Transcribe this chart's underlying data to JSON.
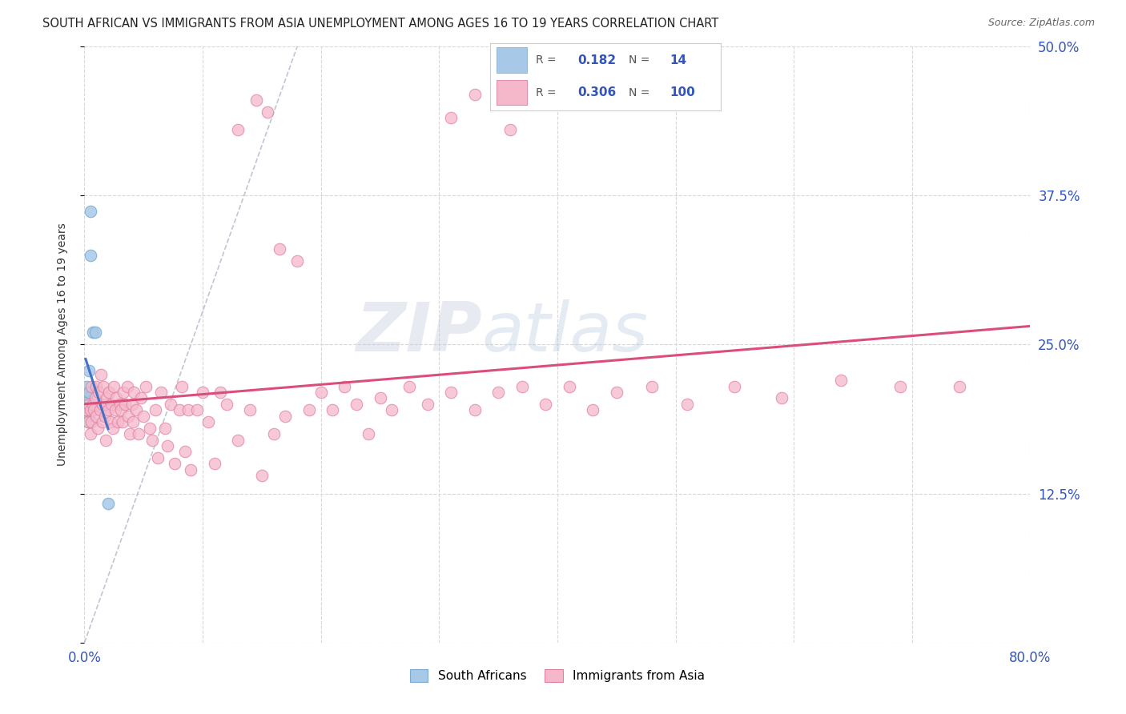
{
  "title": "SOUTH AFRICAN VS IMMIGRANTS FROM ASIA UNEMPLOYMENT AMONG AGES 16 TO 19 YEARS CORRELATION CHART",
  "source": "Source: ZipAtlas.com",
  "ylabel": "Unemployment Among Ages 16 to 19 years",
  "xlim": [
    0.0,
    0.8
  ],
  "ylim": [
    0.0,
    0.5
  ],
  "xticks": [
    0.0,
    0.1,
    0.2,
    0.3,
    0.4,
    0.5,
    0.6,
    0.7,
    0.8
  ],
  "yticks": [
    0.0,
    0.125,
    0.25,
    0.375,
    0.5
  ],
  "legend_R1": "0.182",
  "legend_N1": "14",
  "legend_R2": "0.306",
  "legend_N2": "100",
  "color_sa": "#a8c8e8",
  "color_asia": "#f5b8cb",
  "color_sa_line": "#4472c4",
  "color_asia_line": "#d94f7a",
  "watermark_zip": "ZIP",
  "watermark_atlas": "atlas",
  "background": "#ffffff",
  "grid_color": "#d8d8d8",
  "sa_x": [
    0.001,
    0.002,
    0.002,
    0.002,
    0.003,
    0.003,
    0.003,
    0.004,
    0.004,
    0.005,
    0.005,
    0.007,
    0.009,
    0.02
  ],
  "sa_y": [
    0.2,
    0.208,
    0.215,
    0.195,
    0.202,
    0.19,
    0.185,
    0.21,
    0.228,
    0.325,
    0.362,
    0.26,
    0.26,
    0.117
  ],
  "asia_x": [
    0.001,
    0.002,
    0.003,
    0.004,
    0.005,
    0.005,
    0.006,
    0.006,
    0.007,
    0.008,
    0.009,
    0.01,
    0.01,
    0.011,
    0.012,
    0.013,
    0.014,
    0.015,
    0.015,
    0.016,
    0.017,
    0.018,
    0.018,
    0.019,
    0.02,
    0.021,
    0.022,
    0.023,
    0.024,
    0.025,
    0.026,
    0.027,
    0.028,
    0.03,
    0.031,
    0.032,
    0.033,
    0.034,
    0.036,
    0.037,
    0.038,
    0.04,
    0.041,
    0.042,
    0.044,
    0.046,
    0.048,
    0.05,
    0.052,
    0.055,
    0.057,
    0.06,
    0.062,
    0.065,
    0.068,
    0.07,
    0.073,
    0.076,
    0.08,
    0.082,
    0.085,
    0.088,
    0.09,
    0.095,
    0.1,
    0.105,
    0.11,
    0.115,
    0.12,
    0.13,
    0.14,
    0.15,
    0.16,
    0.17,
    0.18,
    0.19,
    0.2,
    0.21,
    0.22,
    0.23,
    0.24,
    0.25,
    0.26,
    0.275,
    0.29,
    0.31,
    0.33,
    0.35,
    0.37,
    0.39,
    0.41,
    0.43,
    0.45,
    0.48,
    0.51,
    0.55,
    0.59,
    0.64,
    0.69,
    0.74
  ],
  "asia_y": [
    0.195,
    0.195,
    0.185,
    0.2,
    0.175,
    0.195,
    0.185,
    0.215,
    0.2,
    0.195,
    0.205,
    0.19,
    0.215,
    0.18,
    0.21,
    0.195,
    0.225,
    0.2,
    0.185,
    0.215,
    0.19,
    0.2,
    0.17,
    0.205,
    0.195,
    0.21,
    0.185,
    0.2,
    0.18,
    0.215,
    0.195,
    0.205,
    0.185,
    0.2,
    0.195,
    0.185,
    0.21,
    0.2,
    0.215,
    0.19,
    0.175,
    0.2,
    0.185,
    0.21,
    0.195,
    0.175,
    0.205,
    0.19,
    0.215,
    0.18,
    0.17,
    0.195,
    0.155,
    0.21,
    0.18,
    0.165,
    0.2,
    0.15,
    0.195,
    0.215,
    0.16,
    0.195,
    0.145,
    0.195,
    0.21,
    0.185,
    0.15,
    0.21,
    0.2,
    0.17,
    0.195,
    0.14,
    0.175,
    0.19,
    0.32,
    0.195,
    0.21,
    0.195,
    0.215,
    0.2,
    0.175,
    0.205,
    0.195,
    0.215,
    0.2,
    0.21,
    0.195,
    0.21,
    0.215,
    0.2,
    0.215,
    0.195,
    0.21,
    0.215,
    0.2,
    0.215,
    0.205,
    0.22,
    0.215,
    0.215
  ],
  "asia_high_x": [
    0.13,
    0.145,
    0.155,
    0.165,
    0.31,
    0.33,
    0.36
  ],
  "asia_high_y": [
    0.43,
    0.455,
    0.445,
    0.33,
    0.44,
    0.46,
    0.43
  ]
}
